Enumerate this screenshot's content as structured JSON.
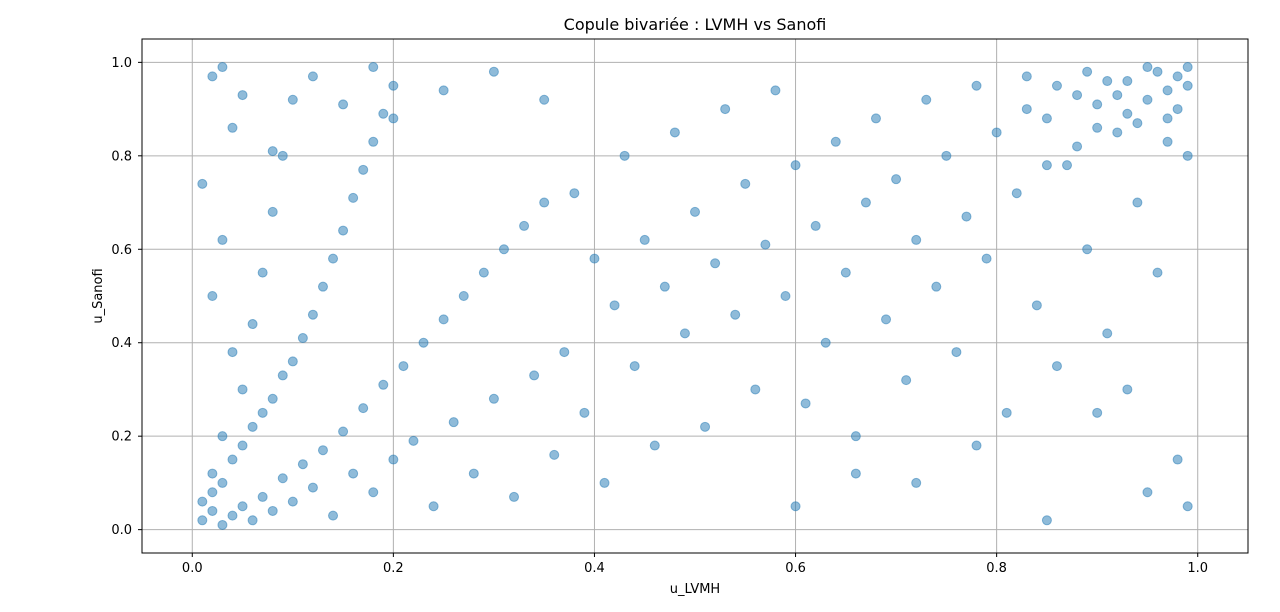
{
  "chart_data": {
    "type": "scatter",
    "title": "Copule bivariée : LVMH vs Sanofi",
    "xlabel": "u_LVMH",
    "ylabel": "u_Sanofi",
    "xlim": [
      -0.05,
      1.05
    ],
    "ylim": [
      -0.05,
      1.05
    ],
    "xticks": [
      0.0,
      0.2,
      0.4,
      0.6,
      0.8,
      1.0
    ],
    "yticks": [
      0.0,
      0.2,
      0.4,
      0.6,
      0.8,
      1.0
    ],
    "xtick_labels": [
      "0.0",
      "0.2",
      "0.4",
      "0.6",
      "0.8",
      "1.0"
    ],
    "ytick_labels": [
      "0.0",
      "0.2",
      "0.4",
      "0.6",
      "0.8",
      "1.0"
    ],
    "grid": true,
    "point_color": "#1f77b4",
    "point_alpha": 0.5,
    "series": [
      {
        "points": [
          [
            0.01,
            0.02
          ],
          [
            0.02,
            0.04
          ],
          [
            0.03,
            0.01
          ],
          [
            0.01,
            0.06
          ],
          [
            0.04,
            0.03
          ],
          [
            0.02,
            0.08
          ],
          [
            0.05,
            0.05
          ],
          [
            0.03,
            0.1
          ],
          [
            0.06,
            0.02
          ],
          [
            0.02,
            0.12
          ],
          [
            0.07,
            0.07
          ],
          [
            0.04,
            0.15
          ],
          [
            0.08,
            0.04
          ],
          [
            0.05,
            0.18
          ],
          [
            0.09,
            0.11
          ],
          [
            0.03,
            0.2
          ],
          [
            0.1,
            0.06
          ],
          [
            0.06,
            0.22
          ],
          [
            0.11,
            0.14
          ],
          [
            0.07,
            0.25
          ],
          [
            0.12,
            0.09
          ],
          [
            0.08,
            0.28
          ],
          [
            0.13,
            0.17
          ],
          [
            0.05,
            0.3
          ],
          [
            0.14,
            0.03
          ],
          [
            0.09,
            0.33
          ],
          [
            0.15,
            0.21
          ],
          [
            0.1,
            0.36
          ],
          [
            0.16,
            0.12
          ],
          [
            0.04,
            0.38
          ],
          [
            0.17,
            0.26
          ],
          [
            0.11,
            0.41
          ],
          [
            0.18,
            0.08
          ],
          [
            0.06,
            0.44
          ],
          [
            0.19,
            0.31
          ],
          [
            0.12,
            0.46
          ],
          [
            0.2,
            0.15
          ],
          [
            0.02,
            0.5
          ],
          [
            0.21,
            0.35
          ],
          [
            0.13,
            0.52
          ],
          [
            0.22,
            0.19
          ],
          [
            0.07,
            0.55
          ],
          [
            0.23,
            0.4
          ],
          [
            0.14,
            0.58
          ],
          [
            0.24,
            0.05
          ],
          [
            0.03,
            0.62
          ],
          [
            0.25,
            0.45
          ],
          [
            0.15,
            0.64
          ],
          [
            0.26,
            0.23
          ],
          [
            0.08,
            0.68
          ],
          [
            0.27,
            0.5
          ],
          [
            0.16,
            0.71
          ],
          [
            0.28,
            0.12
          ],
          [
            0.01,
            0.74
          ],
          [
            0.29,
            0.55
          ],
          [
            0.17,
            0.77
          ],
          [
            0.3,
            0.28
          ],
          [
            0.09,
            0.8
          ],
          [
            0.31,
            0.6
          ],
          [
            0.18,
            0.83
          ],
          [
            0.32,
            0.07
          ],
          [
            0.04,
            0.86
          ],
          [
            0.33,
            0.65
          ],
          [
            0.19,
            0.89
          ],
          [
            0.34,
            0.33
          ],
          [
            0.1,
            0.92
          ],
          [
            0.35,
            0.7
          ],
          [
            0.2,
            0.95
          ],
          [
            0.36,
            0.16
          ],
          [
            0.02,
            0.97
          ],
          [
            0.37,
            0.38
          ],
          [
            0.38,
            0.72
          ],
          [
            0.39,
            0.25
          ],
          [
            0.4,
            0.58
          ],
          [
            0.41,
            0.1
          ],
          [
            0.42,
            0.48
          ],
          [
            0.43,
            0.8
          ],
          [
            0.44,
            0.35
          ],
          [
            0.45,
            0.62
          ],
          [
            0.46,
            0.18
          ],
          [
            0.47,
            0.52
          ],
          [
            0.48,
            0.85
          ],
          [
            0.49,
            0.42
          ],
          [
            0.5,
            0.68
          ],
          [
            0.51,
            0.22
          ],
          [
            0.52,
            0.57
          ],
          [
            0.53,
            0.9
          ],
          [
            0.54,
            0.46
          ],
          [
            0.55,
            0.74
          ],
          [
            0.56,
            0.3
          ],
          [
            0.57,
            0.61
          ],
          [
            0.58,
            0.94
          ],
          [
            0.59,
            0.5
          ],
          [
            0.6,
            0.78
          ],
          [
            0.61,
            0.27
          ],
          [
            0.62,
            0.65
          ],
          [
            0.63,
            0.4
          ],
          [
            0.64,
            0.83
          ],
          [
            0.65,
            0.55
          ],
          [
            0.66,
            0.2
          ],
          [
            0.67,
            0.7
          ],
          [
            0.68,
            0.88
          ],
          [
            0.69,
            0.45
          ],
          [
            0.7,
            0.75
          ],
          [
            0.71,
            0.32
          ],
          [
            0.72,
            0.62
          ],
          [
            0.73,
            0.92
          ],
          [
            0.74,
            0.52
          ],
          [
            0.75,
            0.8
          ],
          [
            0.76,
            0.38
          ],
          [
            0.77,
            0.67
          ],
          [
            0.78,
            0.95
          ],
          [
            0.79,
            0.58
          ],
          [
            0.8,
            0.85
          ],
          [
            0.81,
            0.25
          ],
          [
            0.82,
            0.72
          ],
          [
            0.83,
            0.9
          ],
          [
            0.84,
            0.48
          ],
          [
            0.85,
            0.88
          ],
          [
            0.86,
            0.35
          ],
          [
            0.87,
            0.78
          ],
          [
            0.88,
            0.93
          ],
          [
            0.89,
            0.6
          ],
          [
            0.9,
            0.91
          ],
          [
            0.91,
            0.42
          ],
          [
            0.92,
            0.85
          ],
          [
            0.93,
            0.96
          ],
          [
            0.94,
            0.7
          ],
          [
            0.95,
            0.92
          ],
          [
            0.96,
            0.55
          ],
          [
            0.97,
            0.88
          ],
          [
            0.98,
            0.97
          ],
          [
            0.99,
            0.8
          ],
          [
            0.97,
            0.94
          ],
          [
            0.95,
            0.99
          ],
          [
            0.98,
            0.9
          ],
          [
            0.93,
            0.89
          ],
          [
            0.96,
            0.98
          ],
          [
            0.99,
            0.95
          ],
          [
            0.92,
            0.93
          ],
          [
            0.94,
            0.87
          ],
          [
            0.91,
            0.96
          ],
          [
            0.99,
            0.99
          ],
          [
            0.9,
            0.86
          ],
          [
            0.89,
            0.98
          ],
          [
            0.97,
            0.83
          ],
          [
            0.88,
            0.82
          ],
          [
            0.86,
            0.95
          ],
          [
            0.85,
            0.78
          ],
          [
            0.83,
            0.97
          ],
          [
            0.6,
            0.05
          ],
          [
            0.72,
            0.1
          ],
          [
            0.85,
            0.02
          ],
          [
            0.95,
            0.08
          ],
          [
            0.98,
            0.15
          ],
          [
            0.9,
            0.25
          ],
          [
            0.78,
            0.18
          ],
          [
            0.66,
            0.12
          ],
          [
            0.93,
            0.3
          ],
          [
            0.99,
            0.05
          ],
          [
            0.05,
            0.93
          ],
          [
            0.12,
            0.97
          ],
          [
            0.2,
            0.88
          ],
          [
            0.08,
            0.81
          ],
          [
            0.15,
            0.91
          ],
          [
            0.25,
            0.94
          ],
          [
            0.3,
            0.98
          ],
          [
            0.03,
            0.99
          ],
          [
            0.18,
            0.99
          ],
          [
            0.35,
            0.92
          ]
        ]
      }
    ]
  }
}
